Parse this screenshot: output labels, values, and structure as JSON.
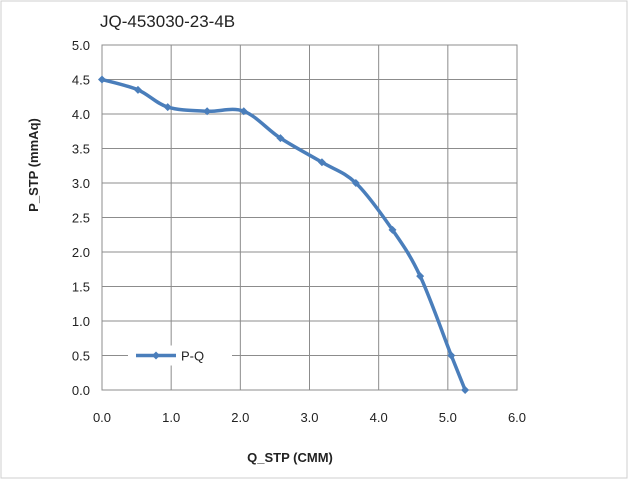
{
  "chart_data": {
    "type": "line",
    "title": "JQ-453030-23-4B",
    "xlabel": "Q_STP (CMM)",
    "ylabel": "P_STP (mmAq)",
    "xlim": [
      0,
      6
    ],
    "ylim": [
      0,
      5
    ],
    "x_ticks": [
      "0.0",
      "1.0",
      "2.0",
      "3.0",
      "4.0",
      "5.0",
      "6.0"
    ],
    "y_ticks": [
      "0.0",
      "0.5",
      "1.0",
      "1.5",
      "2.0",
      "2.5",
      "3.0",
      "3.5",
      "4.0",
      "4.5",
      "5.0"
    ],
    "grid": true,
    "legend_position": "bottom-left",
    "series": [
      {
        "name": "P-Q",
        "color": "#4a7ebb",
        "x": [
          0.0,
          0.52,
          0.95,
          1.52,
          2.05,
          2.58,
          3.18,
          3.67,
          4.2,
          4.6,
          5.05,
          5.25
        ],
        "y": [
          4.5,
          4.35,
          4.1,
          4.04,
          4.04,
          3.65,
          3.3,
          3.0,
          2.32,
          1.65,
          0.5,
          0.0
        ]
      }
    ]
  }
}
